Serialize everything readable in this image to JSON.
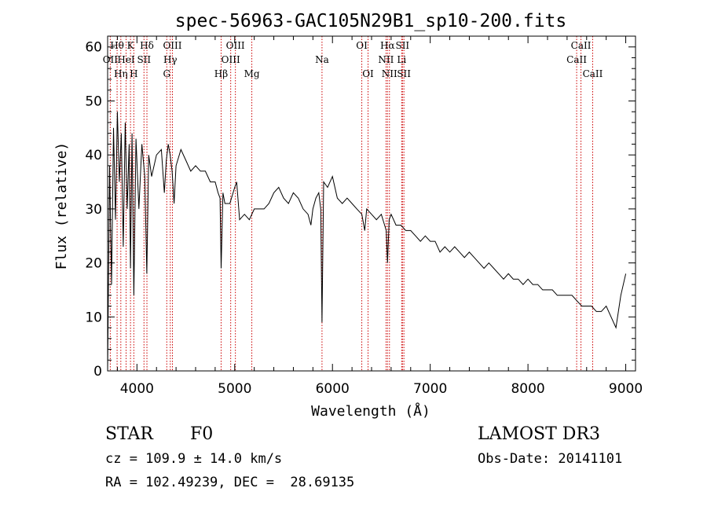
{
  "chart_data": {
    "type": "line",
    "title": "spec-56963-GAC105N29B1_sp10-200.fits",
    "xlabel": "Wavelength (Å)",
    "ylabel": "Flux (relative)",
    "xlim": [
      3700,
      9100
    ],
    "ylim": [
      0,
      62
    ],
    "xticks": [
      4000,
      5000,
      6000,
      7000,
      8000,
      9000
    ],
    "yticks": [
      0,
      10,
      20,
      30,
      40,
      50,
      60
    ],
    "grid": false,
    "series": [
      {
        "name": "flux",
        "x": [
          3700,
          3720,
          3740,
          3760,
          3780,
          3800,
          3820,
          3840,
          3860,
          3880,
          3900,
          3920,
          3934,
          3950,
          3968,
          3990,
          4020,
          4050,
          4080,
          4101,
          4120,
          4150,
          4200,
          4250,
          4280,
          4300,
          4320,
          4340,
          4360,
          4380,
          4400,
          4450,
          4500,
          4550,
          4600,
          4650,
          4700,
          4750,
          4800,
          4830,
          4850,
          4861,
          4880,
          4900,
          4950,
          5000,
          5020,
          5050,
          5100,
          5150,
          5200,
          5250,
          5300,
          5350,
          5400,
          5450,
          5500,
          5550,
          5600,
          5650,
          5700,
          5750,
          5780,
          5800,
          5830,
          5860,
          5880,
          5893,
          5910,
          5950,
          6000,
          6050,
          6100,
          6150,
          6200,
          6250,
          6300,
          6330,
          6350,
          6400,
          6450,
          6500,
          6550,
          6563,
          6580,
          6600,
          6650,
          6700,
          6750,
          6800,
          6850,
          6900,
          6950,
          7000,
          7050,
          7100,
          7150,
          7200,
          7250,
          7300,
          7350,
          7400,
          7450,
          7500,
          7550,
          7600,
          7650,
          7700,
          7750,
          7800,
          7850,
          7900,
          7950,
          8000,
          8050,
          8100,
          8150,
          8200,
          8250,
          8300,
          8350,
          8400,
          8450,
          8500,
          8550,
          8600,
          8650,
          8700,
          8750,
          8800,
          8850,
          8900,
          8950,
          9000
        ],
        "values": [
          0,
          38,
          16,
          45,
          28,
          48,
          35,
          44,
          23,
          46,
          30,
          42,
          19,
          44,
          14,
          43,
          30,
          42,
          36,
          18,
          40,
          36,
          40,
          41,
          33,
          39,
          42,
          40,
          37,
          31,
          38,
          41,
          39,
          37,
          38,
          37,
          37,
          35,
          35,
          33,
          32,
          19,
          33,
          31,
          31,
          34,
          35,
          28,
          29,
          28,
          30,
          30,
          30,
          31,
          33,
          34,
          32,
          31,
          33,
          32,
          30,
          29,
          27,
          30,
          32,
          33,
          30,
          9,
          35,
          34,
          36,
          32,
          31,
          32,
          31,
          30,
          29,
          26,
          30,
          29,
          28,
          29,
          26,
          20,
          28,
          29,
          27,
          27,
          26,
          26,
          25,
          24,
          25,
          24,
          24,
          22,
          23,
          22,
          23,
          22,
          21,
          22,
          21,
          20,
          19,
          20,
          19,
          18,
          17,
          18,
          17,
          17,
          16,
          17,
          16,
          16,
          15,
          15,
          15,
          14,
          14,
          14,
          14,
          13,
          12,
          12,
          12,
          11,
          11,
          12,
          10,
          8,
          14,
          18
        ]
      }
    ],
    "line_ids": [
      {
        "label": "OII",
        "wave": 3727,
        "row": 2
      },
      {
        "label": "Hθ",
        "wave": 3797,
        "row": 1
      },
      {
        "label": "Hη",
        "wave": 3835,
        "row": 3
      },
      {
        "label": "HeI",
        "wave": 3889,
        "row": 2
      },
      {
        "label": "K",
        "wave": 3934,
        "row": 1
      },
      {
        "label": "H",
        "wave": 3968,
        "row": 3
      },
      {
        "label": "SII",
        "wave": 4072,
        "row": 2
      },
      {
        "label": "Hδ",
        "wave": 4102,
        "row": 1
      },
      {
        "label": "G",
        "wave": 4305,
        "row": 3
      },
      {
        "label": "Hγ",
        "wave": 4341,
        "row": 2
      },
      {
        "label": "OIII",
        "wave": 4363,
        "row": 1
      },
      {
        "label": "Hβ",
        "wave": 4861,
        "row": 3
      },
      {
        "label": "OIII",
        "wave": 4959,
        "row": 2
      },
      {
        "label": "OIII",
        "wave": 5007,
        "row": 1
      },
      {
        "label": "Mg",
        "wave": 5175,
        "row": 3
      },
      {
        "label": "Na",
        "wave": 5893,
        "row": 2
      },
      {
        "label": "OI",
        "wave": 6300,
        "row": 1
      },
      {
        "label": "OI",
        "wave": 6364,
        "row": 3
      },
      {
        "label": "NII",
        "wave": 6548,
        "row": 2
      },
      {
        "label": "Hα",
        "wave": 6563,
        "row": 1
      },
      {
        "label": "NII",
        "wave": 6583,
        "row": 3
      },
      {
        "label": "Li",
        "wave": 6708,
        "row": 2
      },
      {
        "label": "SII",
        "wave": 6716,
        "row": 1
      },
      {
        "label": "SII",
        "wave": 6731,
        "row": 3
      },
      {
        "label": "CaII",
        "wave": 8498,
        "row": 2
      },
      {
        "label": "CaII",
        "wave": 8542,
        "row": 1
      },
      {
        "label": "CaII",
        "wave": 8662,
        "row": 3
      }
    ],
    "line_color": "#000000",
    "marker_color": "#cc0000"
  },
  "info": {
    "class": "STAR",
    "subclass": "F0",
    "survey": "LAMOST DR3",
    "cz": "cz = 109.9 ± 14.0 km/s",
    "obs_date": "Obs-Date: 20141101",
    "radec": "RA = 102.49239, DEC =  28.69135"
  }
}
